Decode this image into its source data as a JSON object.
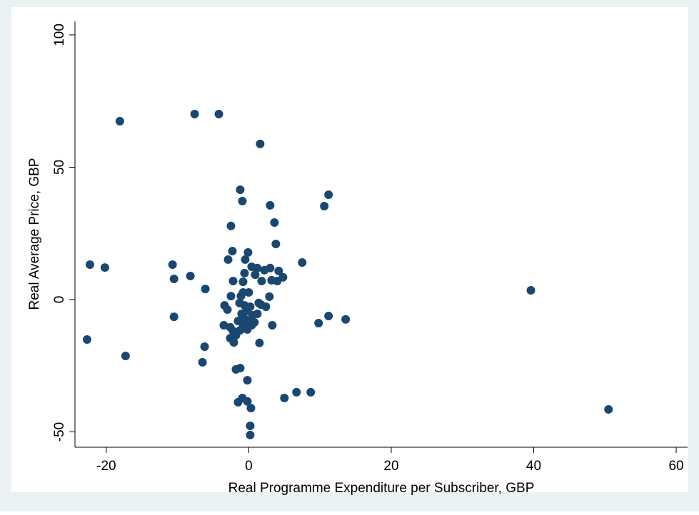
{
  "chart_data": {
    "type": "scatter",
    "xlabel": "Real Programme Expenditure per Subscriber, GBP",
    "ylabel": "Real Average Price, GBP",
    "color": "#1a476f",
    "xlim": [
      -24.4,
      61.6
    ],
    "ylim": [
      -55.8,
      105.1
    ],
    "xticks": [
      -20,
      0,
      20,
      40,
      60
    ],
    "yticks": [
      -50,
      0,
      50,
      100
    ],
    "x": [
      -18.1,
      -7.6,
      -4.2,
      1.6,
      -1.2,
      -0.9,
      11.2,
      10.6,
      3.0,
      3.6,
      -2.5,
      3.8,
      -2.3,
      -0.1,
      -2.9,
      -0.5,
      7.5,
      -22.3,
      -20.2,
      -10.7,
      0.4,
      1.2,
      3.0,
      2.2,
      4.2,
      -0.6,
      0.9,
      -8.2,
      -10.5,
      4.8,
      4.0,
      1.8,
      3.2,
      -2.2,
      -0.8,
      -6.1,
      39.6,
      -0.8,
      0,
      -2.5,
      2.9,
      -1.1,
      -1.3,
      -0.6,
      0.2,
      -0.3,
      -1.0,
      0.5,
      -0.6,
      0,
      0.8,
      -0.8,
      0.4,
      -0.2,
      -1.2,
      -1.5,
      1.2,
      1.4,
      2.4,
      1.7,
      -3.4,
      -3.0,
      -10.5,
      11.2,
      13.6,
      9.8,
      3.3,
      -3.5,
      -2.6,
      -2.2,
      -1.8,
      -2.6,
      -2.1,
      1.5,
      -22.7,
      -6.2,
      -17.3,
      -6.5,
      -1.2,
      -1.8,
      -0.2,
      6.7,
      8.7,
      5.0,
      -0.9,
      -0.2,
      -1.5,
      0.3,
      50.5,
      0.2,
      0.2
    ],
    "values": [
      67.4,
      70.1,
      70.1,
      58.8,
      41.5,
      37.2,
      39.6,
      35.3,
      35.6,
      29.1,
      27.8,
      21.0,
      18.3,
      17.8,
      15.1,
      15.1,
      14.0,
      13.2,
      12.1,
      13.2,
      12.4,
      11.9,
      11.9,
      11.1,
      10.8,
      10.0,
      9.4,
      8.9,
      7.8,
      8.4,
      7.0,
      7.0,
      7.3,
      7.0,
      6.7,
      4.0,
      3.5,
      2.7,
      2.7,
      1.3,
      1.1,
      1.3,
      -1.3,
      -2.2,
      -2.7,
      -4.3,
      -5.4,
      -5.9,
      -7.3,
      -8.1,
      -8.6,
      -9.4,
      -9.7,
      -11.3,
      -11.6,
      -8.1,
      -5.4,
      -1.3,
      -2.7,
      -1.9,
      -2.2,
      -3.8,
      -6.5,
      -6.2,
      -7.5,
      -8.9,
      -9.7,
      -9.7,
      -10.5,
      -11.9,
      -13.5,
      -14.6,
      -16.2,
      -16.4,
      -15.1,
      -17.8,
      -21.3,
      -23.7,
      -25.9,
      -26.4,
      -30.5,
      -35.0,
      -35.0,
      -37.2,
      -37.2,
      -38.5,
      -38.8,
      -41.0,
      -41.5,
      -47.7,
      -51.2
    ]
  }
}
